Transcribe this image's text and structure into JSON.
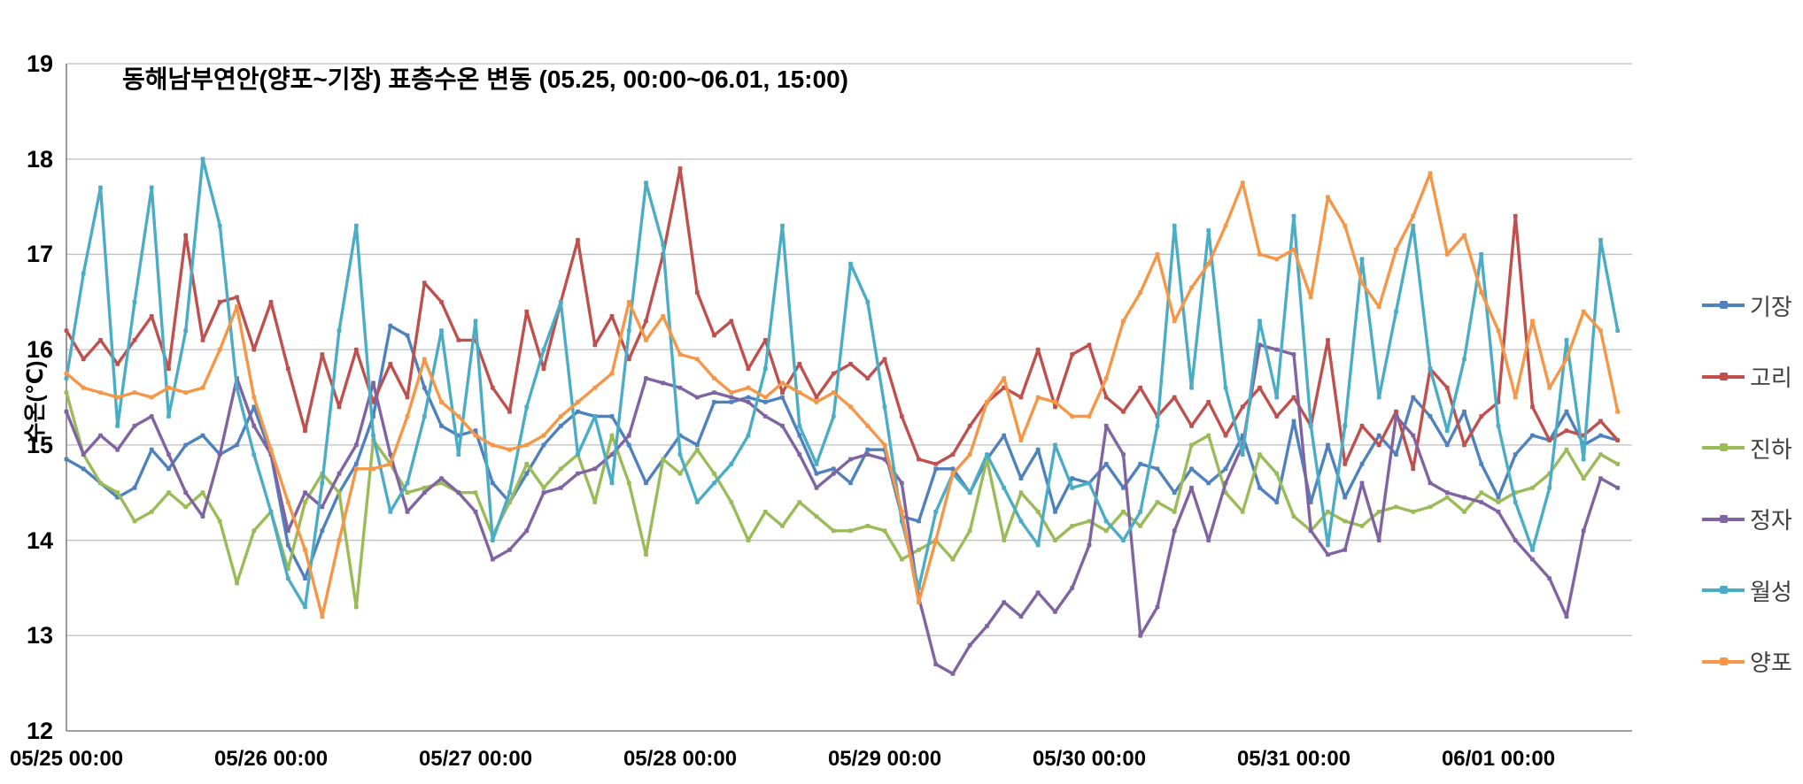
{
  "chart": {
    "title": "동해남부연안(양포~기장) 표층수온 변동 (05.25, 00:00~06.01, 15:00)",
    "y_axis_title": "수온(℃)"
  },
  "chart_data": {
    "type": "line",
    "title": "동해남부연안(양포~기장) 표층수온 변동 (05.25, 00:00~06.01, 15:00)",
    "xlabel": "",
    "ylabel": "수온(℃)",
    "ylim": [
      12,
      19
    ],
    "y_ticks": [
      12,
      13,
      14,
      15,
      16,
      17,
      18,
      19
    ],
    "x_tick_labels": [
      "05/25 00:00",
      "05/26 00:00",
      "05/27 00:00",
      "05/28 00:00",
      "05/29 00:00",
      "05/30 00:00",
      "05/31 00:00",
      "06/01 00:00"
    ],
    "time_start": "05/25 00:00",
    "time_end": "06/01 15:00",
    "sample_interval_hours": 2,
    "grid": "horizontal-only",
    "legend_position": "right",
    "axis_color": "#808080",
    "gridline_color": "#bfbfbf",
    "series": [
      {
        "name": "기장",
        "color": "#4F81BD",
        "values": [
          14.85,
          14.75,
          14.6,
          14.45,
          14.55,
          14.95,
          14.75,
          15.0,
          15.1,
          14.9,
          15.0,
          15.4,
          14.9,
          13.95,
          13.6,
          14.1,
          14.5,
          14.8,
          15.3,
          16.25,
          16.15,
          15.6,
          15.2,
          15.1,
          15.15,
          14.6,
          14.4,
          14.7,
          15.0,
          15.2,
          15.35,
          15.3,
          15.3,
          15.0,
          14.6,
          14.85,
          15.1,
          15.0,
          15.45,
          15.45,
          15.5,
          15.45,
          15.5,
          15.1,
          14.7,
          14.75,
          14.6,
          14.95,
          14.95,
          14.25,
          14.2,
          14.75,
          14.75,
          14.5,
          14.85,
          15.1,
          14.65,
          14.95,
          14.3,
          14.65,
          14.6,
          14.8,
          14.55,
          14.8,
          14.75,
          14.5,
          14.75,
          14.6,
          14.75,
          15.1,
          14.55,
          14.4,
          15.25,
          14.4,
          15.0,
          14.45,
          14.8,
          15.1,
          14.9,
          15.5,
          15.3,
          15.0,
          15.35,
          14.8,
          14.45,
          14.9,
          15.1,
          15.05,
          15.35,
          15.0,
          15.1,
          15.05
        ]
      },
      {
        "name": "고리",
        "color": "#C0504D",
        "values": [
          16.2,
          15.9,
          16.1,
          15.85,
          16.1,
          16.35,
          15.8,
          17.2,
          16.1,
          16.5,
          16.55,
          16.0,
          16.5,
          15.8,
          15.15,
          15.95,
          15.4,
          16.0,
          15.45,
          15.85,
          15.5,
          16.7,
          16.5,
          16.1,
          16.1,
          15.6,
          15.35,
          16.4,
          15.8,
          16.5,
          17.15,
          16.05,
          16.35,
          15.9,
          16.3,
          17.0,
          17.9,
          16.6,
          16.15,
          16.3,
          15.8,
          16.1,
          15.55,
          15.85,
          15.5,
          15.75,
          15.85,
          15.7,
          15.9,
          15.3,
          14.85,
          14.8,
          14.9,
          15.2,
          15.45,
          15.6,
          15.5,
          16.0,
          15.4,
          15.95,
          16.05,
          15.5,
          15.35,
          15.6,
          15.3,
          15.5,
          15.2,
          15.45,
          15.1,
          15.4,
          15.6,
          15.3,
          15.5,
          15.2,
          16.1,
          14.8,
          15.2,
          15.0,
          15.35,
          14.75,
          15.8,
          15.6,
          15.0,
          15.3,
          15.45,
          17.4,
          15.4,
          15.05,
          15.15,
          15.1,
          15.25,
          15.05
        ]
      },
      {
        "name": "진하",
        "color": "#9BBB59",
        "values": [
          15.55,
          14.9,
          14.6,
          14.5,
          14.2,
          14.3,
          14.5,
          14.35,
          14.5,
          14.2,
          13.55,
          14.1,
          14.3,
          13.7,
          14.4,
          14.7,
          14.5,
          13.3,
          15.05,
          14.8,
          14.5,
          14.55,
          14.6,
          14.5,
          14.5,
          14.05,
          14.4,
          14.8,
          14.55,
          14.75,
          14.9,
          14.4,
          15.1,
          14.6,
          13.85,
          14.85,
          14.7,
          14.95,
          14.7,
          14.4,
          14.0,
          14.3,
          14.15,
          14.4,
          14.25,
          14.1,
          14.1,
          14.15,
          14.1,
          13.8,
          13.9,
          14.0,
          13.8,
          14.1,
          14.85,
          14.0,
          14.5,
          14.3,
          14.0,
          14.15,
          14.2,
          14.1,
          14.3,
          14.15,
          14.4,
          14.3,
          15.0,
          15.1,
          14.5,
          14.3,
          14.9,
          14.7,
          14.25,
          14.1,
          14.3,
          14.2,
          14.15,
          14.3,
          14.35,
          14.3,
          14.35,
          14.45,
          14.3,
          14.5,
          14.4,
          14.5,
          14.55,
          14.7,
          14.95,
          14.65,
          14.9,
          14.8
        ]
      },
      {
        "name": "정자",
        "color": "#8064A2",
        "values": [
          15.35,
          14.9,
          15.1,
          14.95,
          15.2,
          15.3,
          14.9,
          14.5,
          14.25,
          14.9,
          15.7,
          15.2,
          14.9,
          14.1,
          14.5,
          14.35,
          14.7,
          15.0,
          15.65,
          14.9,
          14.3,
          14.5,
          14.65,
          14.5,
          14.3,
          13.8,
          13.9,
          14.1,
          14.5,
          14.55,
          14.7,
          14.75,
          14.9,
          15.1,
          15.7,
          15.65,
          15.6,
          15.5,
          15.55,
          15.5,
          15.45,
          15.3,
          15.2,
          14.9,
          14.55,
          14.7,
          14.85,
          14.9,
          14.85,
          14.6,
          13.4,
          12.7,
          12.6,
          12.9,
          13.1,
          13.35,
          13.2,
          13.45,
          13.25,
          13.5,
          13.95,
          15.2,
          14.9,
          13.0,
          13.3,
          14.1,
          14.55,
          14.0,
          14.6,
          15.0,
          16.05,
          16.0,
          15.95,
          14.1,
          13.85,
          13.9,
          14.6,
          14.0,
          15.3,
          15.1,
          14.6,
          14.5,
          14.45,
          14.4,
          14.3,
          14.0,
          13.8,
          13.6,
          13.2,
          14.1,
          14.65,
          14.55
        ]
      },
      {
        "name": "월성",
        "color": "#4BACC6",
        "values": [
          15.7,
          16.8,
          17.7,
          15.2,
          16.5,
          17.7,
          15.3,
          16.2,
          18.0,
          17.3,
          15.6,
          14.9,
          14.3,
          13.6,
          13.3,
          14.6,
          16.2,
          17.3,
          15.1,
          14.3,
          14.6,
          15.3,
          16.2,
          14.9,
          16.3,
          14.0,
          14.5,
          15.4,
          16.0,
          16.5,
          14.9,
          15.3,
          14.6,
          16.2,
          17.75,
          17.1,
          14.9,
          14.4,
          14.6,
          14.8,
          15.1,
          15.8,
          17.3,
          15.2,
          14.8,
          15.3,
          16.9,
          16.5,
          15.4,
          14.2,
          13.5,
          14.3,
          14.7,
          14.5,
          14.9,
          14.55,
          14.2,
          13.95,
          15.0,
          14.55,
          14.6,
          14.2,
          14.0,
          14.3,
          15.2,
          17.3,
          15.6,
          17.25,
          15.6,
          14.9,
          16.3,
          15.5,
          17.4,
          15.2,
          13.95,
          15.2,
          16.95,
          15.5,
          16.4,
          17.3,
          15.8,
          15.15,
          15.9,
          17.0,
          15.2,
          14.4,
          13.9,
          14.55,
          16.1,
          14.85,
          17.15,
          16.2
        ]
      },
      {
        "name": "양포",
        "color": "#F79646",
        "values": [
          15.75,
          15.6,
          15.55,
          15.5,
          15.55,
          15.5,
          15.6,
          15.55,
          15.6,
          16.0,
          16.45,
          15.5,
          14.95,
          14.4,
          13.9,
          13.2,
          14.0,
          14.75,
          14.75,
          14.8,
          15.3,
          15.9,
          15.45,
          15.3,
          15.1,
          15.0,
          14.95,
          15.0,
          15.1,
          15.3,
          15.45,
          15.6,
          15.75,
          16.5,
          16.1,
          16.35,
          15.95,
          15.9,
          15.7,
          15.55,
          15.6,
          15.5,
          15.65,
          15.55,
          15.45,
          15.55,
          15.4,
          15.2,
          15.0,
          14.3,
          13.35,
          14.0,
          14.7,
          14.9,
          15.45,
          15.7,
          15.05,
          15.5,
          15.45,
          15.3,
          15.3,
          15.7,
          16.3,
          16.6,
          17.0,
          16.3,
          16.65,
          16.9,
          17.3,
          17.75,
          17.0,
          16.95,
          17.05,
          16.55,
          17.6,
          17.3,
          16.7,
          16.45,
          17.05,
          17.4,
          17.85,
          17.0,
          17.2,
          16.6,
          16.2,
          15.5,
          16.3,
          15.6,
          15.9,
          16.4,
          16.2,
          15.35
        ]
      }
    ]
  }
}
